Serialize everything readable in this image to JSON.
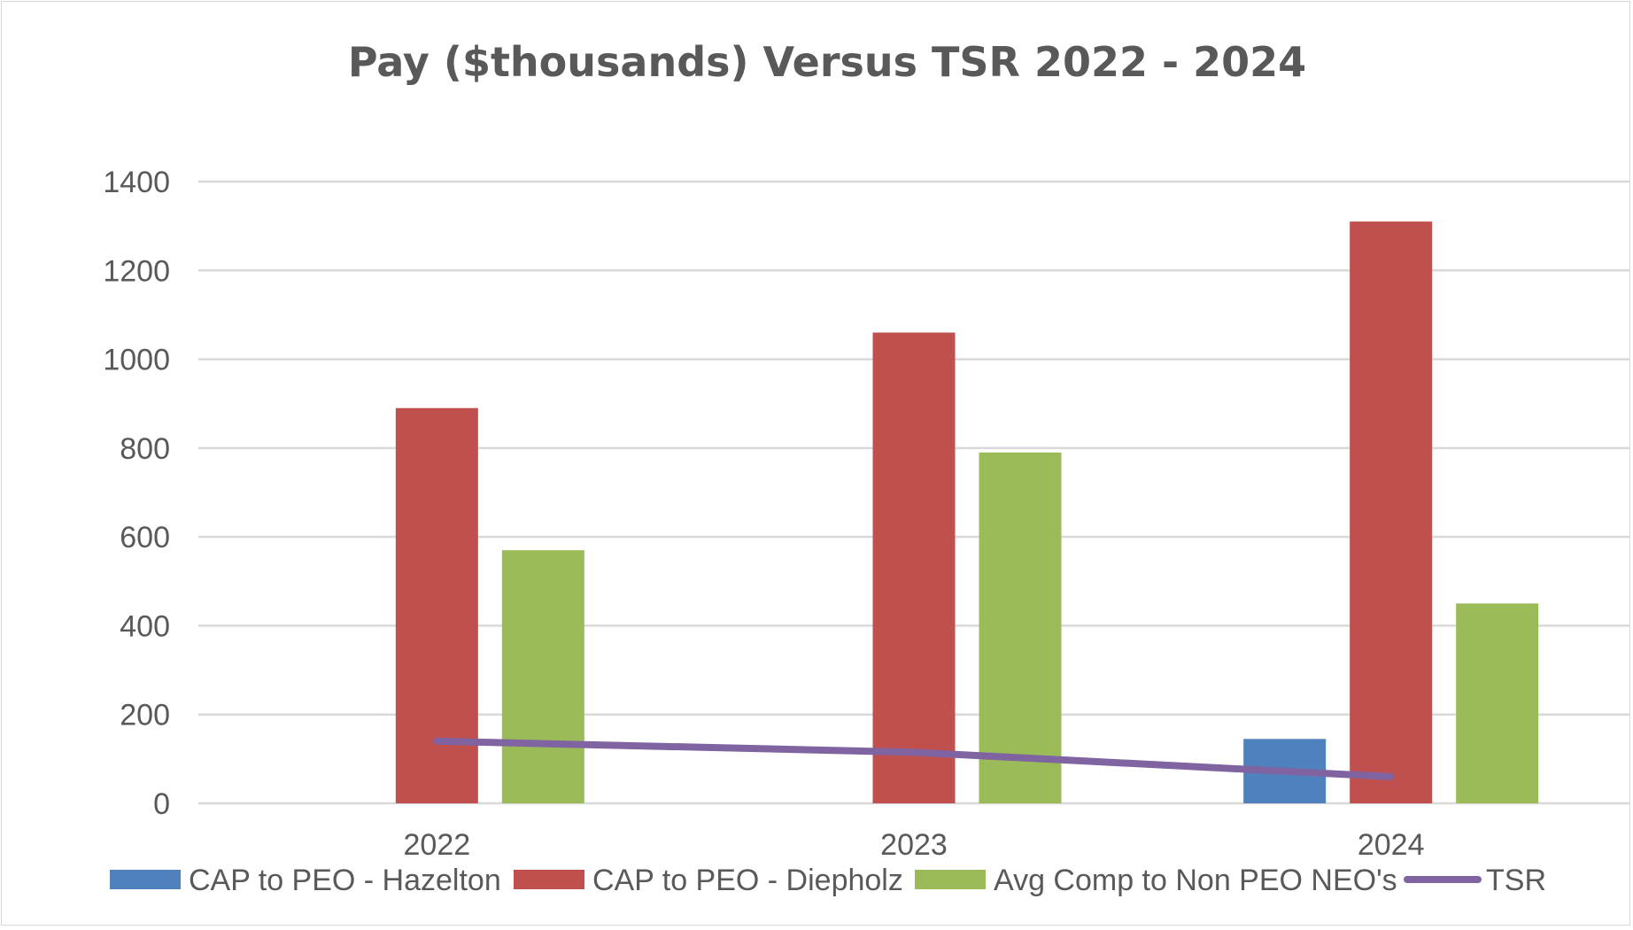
{
  "chart_data": {
    "type": "bar",
    "title": "Pay ($thousands) Versus TSR 2022 - 2024",
    "categories": [
      "2022",
      "2023",
      "2024"
    ],
    "ylim": [
      0,
      1400
    ],
    "yticks": [
      "0",
      "200",
      "400",
      "600",
      "800",
      "1000",
      "1200",
      "1400"
    ],
    "series": [
      {
        "name": "CAP to PEO - Hazelton",
        "kind": "bar",
        "color": "#4f81bd",
        "values": [
          0,
          0,
          145
        ]
      },
      {
        "name": "CAP to PEO - Diepholz",
        "kind": "bar",
        "color": "#c0504d",
        "values": [
          890,
          1060,
          1310
        ]
      },
      {
        "name": "Avg Comp to Non PEO NEO's",
        "kind": "bar",
        "color": "#9bbb59",
        "values": [
          570,
          790,
          450
        ]
      },
      {
        "name": "TSR",
        "kind": "line",
        "color": "#8064a2",
        "values": [
          140,
          115,
          60
        ]
      }
    ],
    "legend_position": "bottom",
    "grid": true,
    "xlabel": "",
    "ylabel": ""
  }
}
